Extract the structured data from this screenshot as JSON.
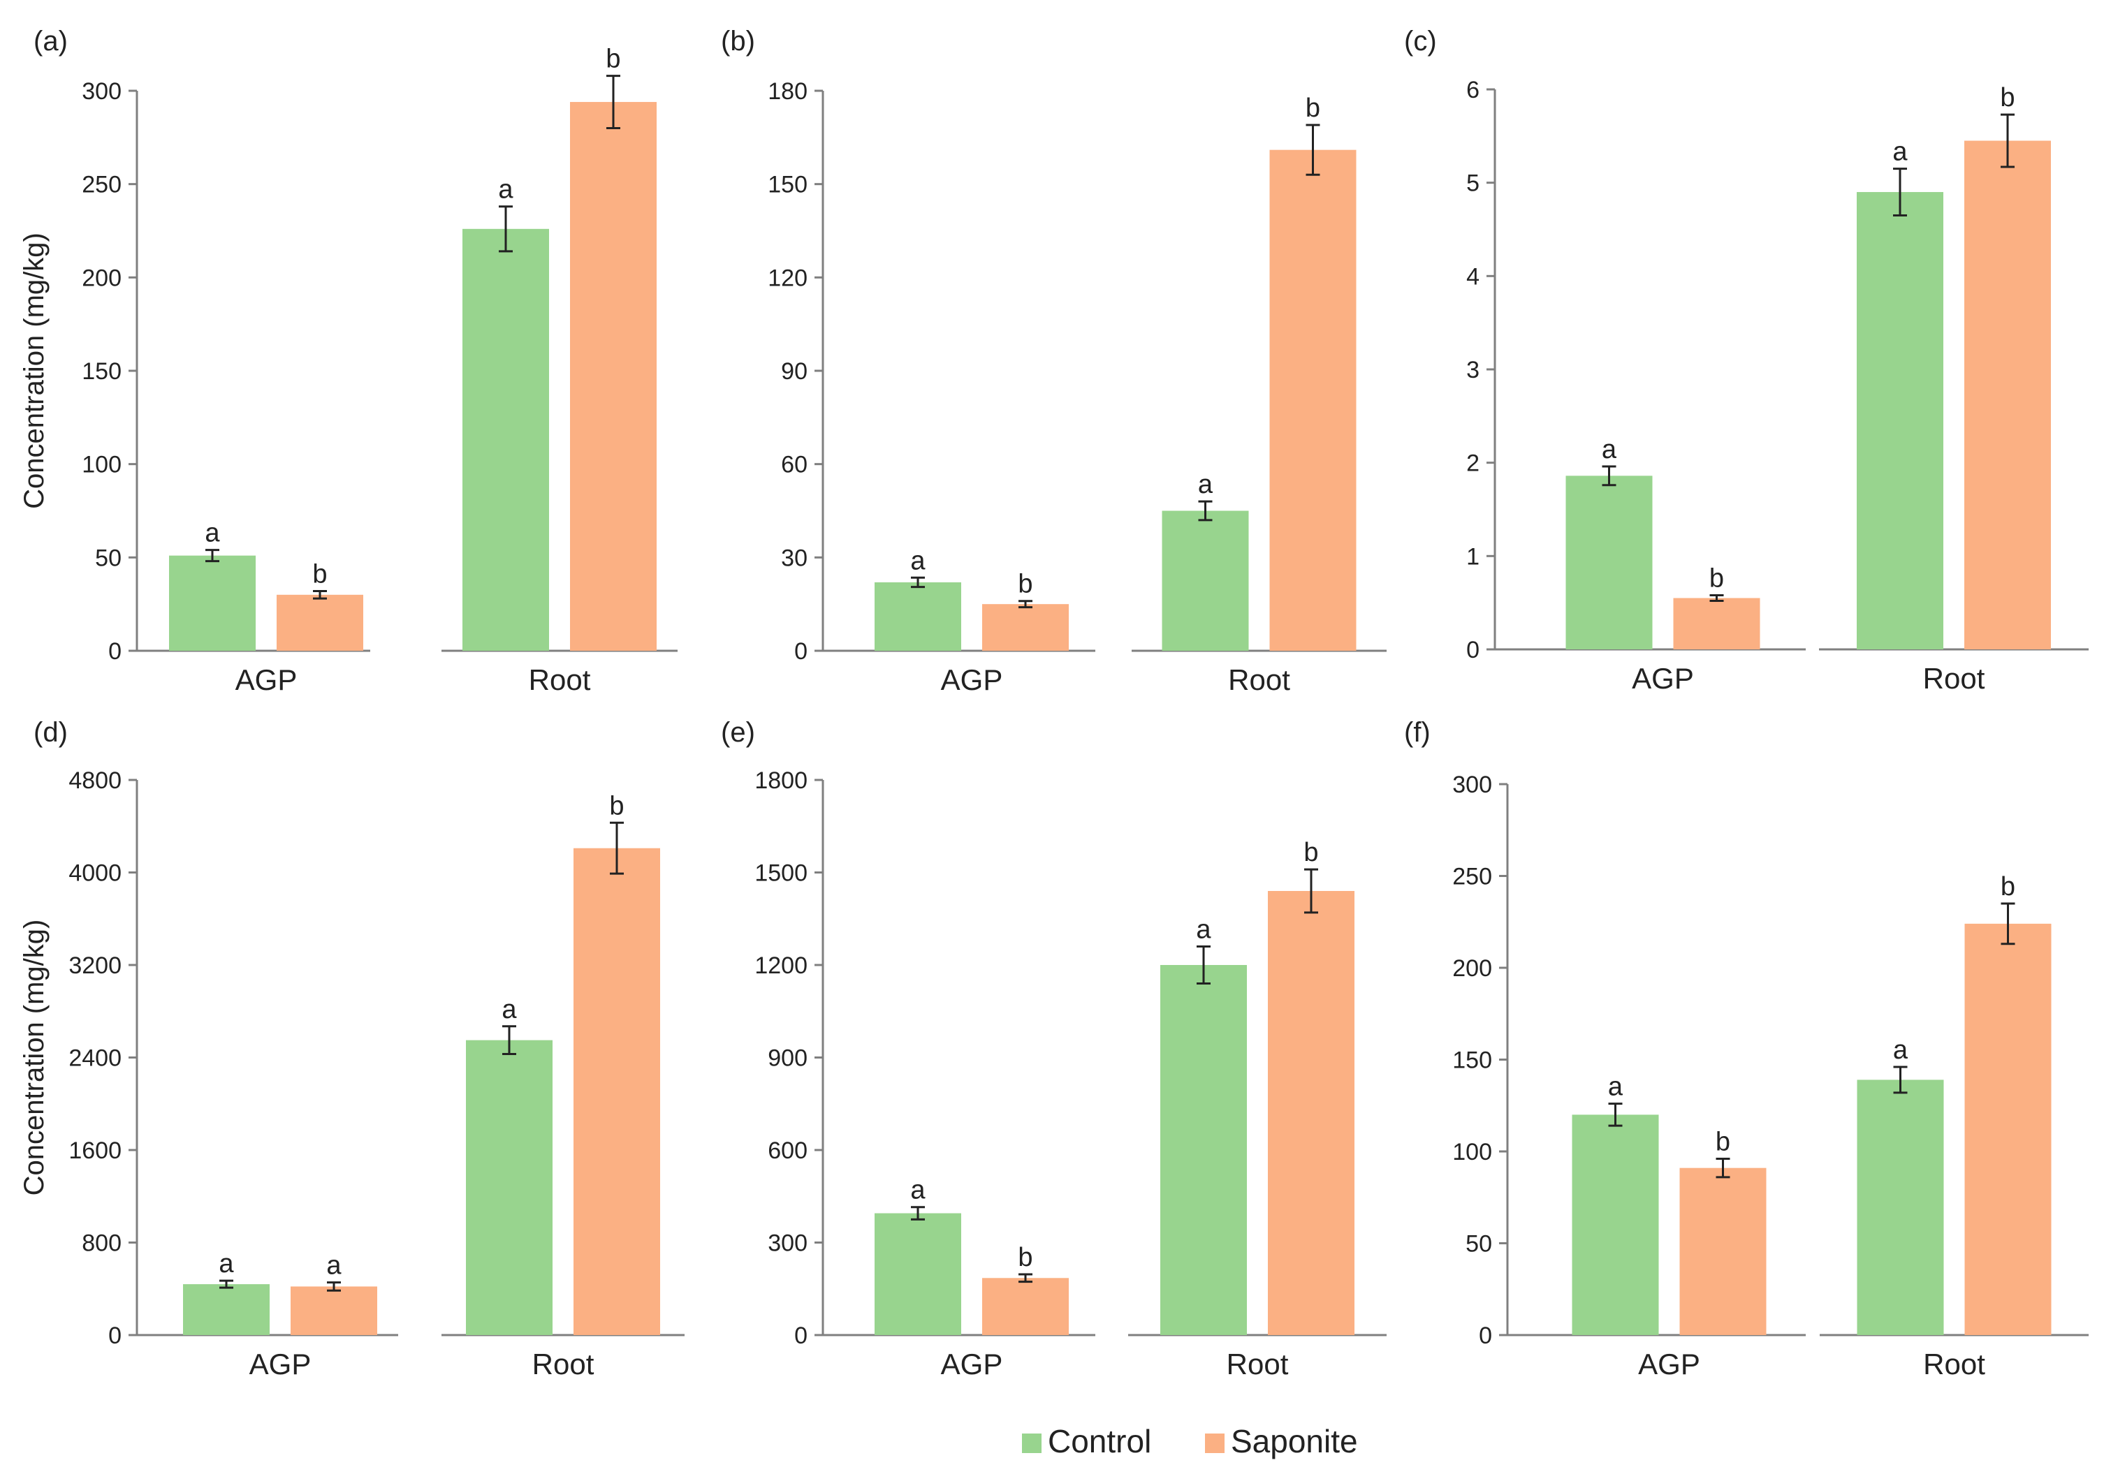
{
  "legend": {
    "control_label": "Control",
    "saponite_label": "Saponite"
  },
  "colors": {
    "control": "#98d48e",
    "saponite": "#fbb083",
    "axis": "#7f7f7f",
    "error_bar": "#222222",
    "text": "#222222"
  },
  "chart_data": [
    {
      "type": "bar",
      "panel": "(a)",
      "ylabel": "Concentration (mg/kg)",
      "ylim": [
        0,
        300
      ],
      "yticks": [
        0,
        50,
        100,
        150,
        200,
        250,
        300
      ],
      "categories": [
        "AGP",
        "Root"
      ],
      "series": [
        {
          "name": "Control",
          "values": [
            51,
            226
          ],
          "errors": [
            3,
            12
          ],
          "letters": [
            "a",
            "a"
          ]
        },
        {
          "name": "Saponite",
          "values": [
            30,
            294
          ],
          "errors": [
            2,
            14
          ],
          "letters": [
            "b",
            "b"
          ]
        }
      ]
    },
    {
      "type": "bar",
      "panel": "(b)",
      "ylabel": "",
      "ylim": [
        0,
        180
      ],
      "yticks": [
        0,
        30,
        60,
        90,
        120,
        150,
        180
      ],
      "categories": [
        "AGP",
        "Root"
      ],
      "series": [
        {
          "name": "Control",
          "values": [
            22,
            45
          ],
          "errors": [
            1.5,
            3
          ],
          "letters": [
            "a",
            "a"
          ]
        },
        {
          "name": "Saponite",
          "values": [
            15,
            161
          ],
          "errors": [
            1,
            8
          ],
          "letters": [
            "b",
            "b"
          ]
        }
      ]
    },
    {
      "type": "bar",
      "panel": "(c)",
      "ylabel": "",
      "ylim": [
        0,
        6
      ],
      "yticks": [
        0,
        1,
        2,
        3,
        4,
        5,
        6
      ],
      "categories": [
        "AGP",
        "Root"
      ],
      "series": [
        {
          "name": "Control",
          "values": [
            1.86,
            4.9
          ],
          "errors": [
            0.1,
            0.25
          ],
          "letters": [
            "a",
            "a"
          ]
        },
        {
          "name": "Saponite",
          "values": [
            0.55,
            5.45
          ],
          "errors": [
            0.03,
            0.28
          ],
          "letters": [
            "b",
            "b"
          ]
        }
      ]
    },
    {
      "type": "bar",
      "panel": "(d)",
      "ylabel": "Concentration (mg/kg)",
      "ylim": [
        0,
        4800
      ],
      "yticks": [
        0,
        800,
        1600,
        2400,
        3200,
        4000,
        4800
      ],
      "categories": [
        "AGP",
        "Root"
      ],
      "series": [
        {
          "name": "Control",
          "values": [
            440,
            2550
          ],
          "errors": [
            30,
            120
          ],
          "letters": [
            "a",
            "a"
          ]
        },
        {
          "name": "Saponite",
          "values": [
            420,
            4210
          ],
          "errors": [
            35,
            220
          ],
          "letters": [
            "a",
            "b"
          ]
        }
      ]
    },
    {
      "type": "bar",
      "panel": "(e)",
      "ylabel": "",
      "ylim": [
        0,
        1800
      ],
      "yticks": [
        0,
        300,
        600,
        900,
        1200,
        1500,
        1800
      ],
      "categories": [
        "AGP",
        "Root"
      ],
      "series": [
        {
          "name": "Control",
          "values": [
            395,
            1200
          ],
          "errors": [
            20,
            60
          ],
          "letters": [
            "a",
            "a"
          ]
        },
        {
          "name": "Saponite",
          "values": [
            185,
            1440
          ],
          "errors": [
            12,
            70
          ],
          "letters": [
            "b",
            "b"
          ]
        }
      ]
    },
    {
      "type": "bar",
      "panel": "(f)",
      "ylabel": "",
      "ylim": [
        0,
        300
      ],
      "yticks": [
        0,
        50,
        100,
        150,
        200,
        250,
        300
      ],
      "categories": [
        "AGP",
        "Root"
      ],
      "series": [
        {
          "name": "Control",
          "values": [
            120,
            139
          ],
          "errors": [
            6,
            7
          ],
          "letters": [
            "a",
            "a"
          ]
        },
        {
          "name": "Saponite",
          "values": [
            91,
            224
          ],
          "errors": [
            5,
            11
          ],
          "letters": [
            "b",
            "b"
          ]
        }
      ]
    }
  ]
}
